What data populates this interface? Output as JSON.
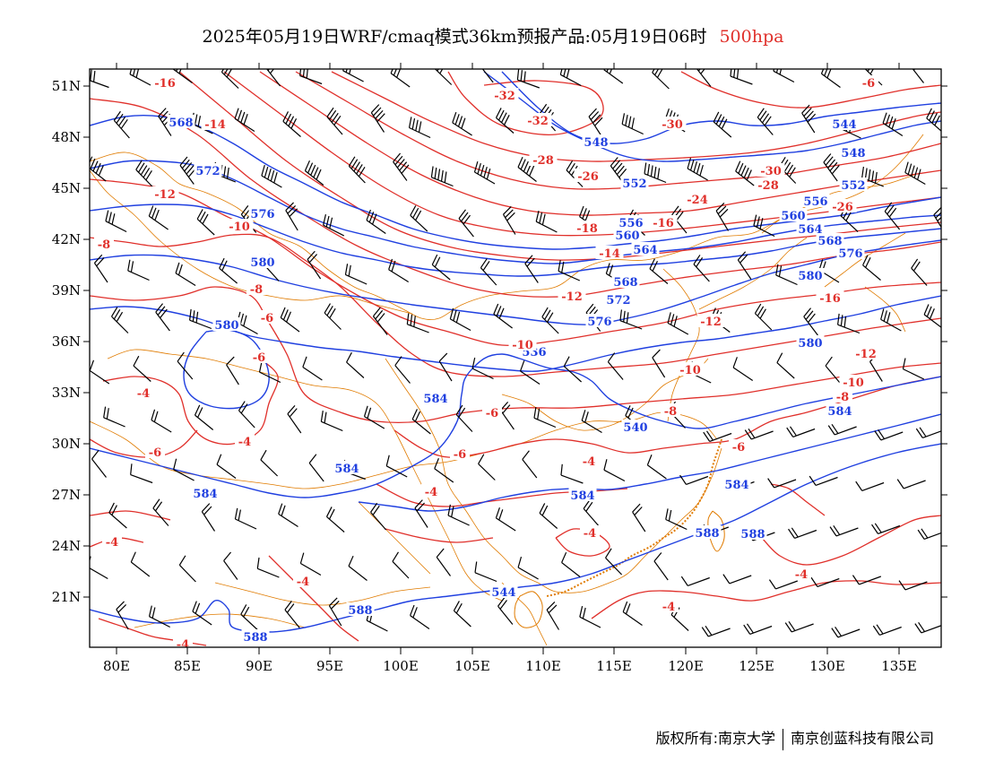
{
  "title": {
    "main": "2025年05月19日WRF/cmaq模式36km预报产品:05月19日06时",
    "level": "500hpa",
    "level_color": "#e0302b"
  },
  "map": {
    "lon_ticks": [
      "80E",
      "85E",
      "90E",
      "95E",
      "100E",
      "105E",
      "110E",
      "115E",
      "120E",
      "125E",
      "130E",
      "135E"
    ],
    "lat_ticks": [
      "21N",
      "24N",
      "27N",
      "30N",
      "33N",
      "36N",
      "39N",
      "42N",
      "45N",
      "48N",
      "51N"
    ],
    "height_contour_color": "#2040e0",
    "temperature_contour_color": "#e0302b",
    "boundary_color": "#e07b00",
    "wind_barb_color": "#000000",
    "height_labels": [
      "568",
      "572",
      "576",
      "580",
      "580",
      "584",
      "584",
      "584",
      "584",
      "584",
      "588",
      "588",
      "588",
      "544",
      "548",
      "552",
      "556",
      "560",
      "564",
      "568",
      "572",
      "576",
      "536",
      "540",
      "544",
      "548",
      "552",
      "556",
      "560",
      "564",
      "568",
      "576",
      "580",
      "580",
      "584",
      "588"
    ],
    "temperature_labels": [
      "-16",
      "-14",
      "-12",
      "-10",
      "-8",
      "-8",
      "-6",
      "-6",
      "-4",
      "-4",
      "-6",
      "-4",
      "-4",
      "-32",
      "-32",
      "-30",
      "-28",
      "-26",
      "-24",
      "-18",
      "-16",
      "-14",
      "-12",
      "-10",
      "-12",
      "-10",
      "-8",
      "-6",
      "-6",
      "-4",
      "-4",
      "-4",
      "-6",
      "-30",
      "-28",
      "-26",
      "-16",
      "-12",
      "-10",
      "-8",
      "-6",
      "-4",
      "-4",
      "-4"
    ]
  },
  "footer": {
    "left": "版权所有:南京大学",
    "right": "南京创蓝科技有限公司"
  }
}
